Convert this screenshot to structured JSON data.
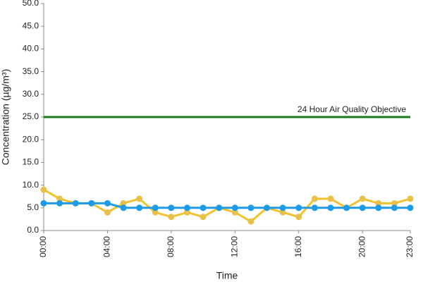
{
  "chart_data": {
    "type": "line",
    "y_label": "Concentration (µg/m³)",
    "x_label": "Time",
    "categories": [
      "00:00",
      null,
      null,
      null,
      "04:00",
      null,
      null,
      null,
      "08:00",
      null,
      null,
      null,
      "12:00",
      null,
      null,
      null,
      "16:00",
      null,
      null,
      null,
      "20:00",
      null,
      null,
      "23:00"
    ],
    "series": [
      {
        "color": "#f2c12e",
        "marker_color": "#e8c04a",
        "values": [
          9,
          7,
          6,
          6,
          4,
          6,
          7,
          4,
          3,
          4,
          3,
          5,
          4,
          2,
          5,
          4,
          3,
          7,
          7,
          5,
          7,
          6,
          6,
          7
        ]
      },
      {
        "color": "#1e9be8",
        "marker_color": "#1e9be8",
        "values": [
          6,
          6,
          6,
          6,
          6,
          5,
          5,
          5,
          5,
          5,
          5,
          5,
          5,
          5,
          5,
          5,
          5,
          5,
          5,
          5,
          5,
          5,
          5,
          5
        ]
      }
    ],
    "reference_line": {
      "value": 25,
      "label": "24 Hour Air Quality Objective",
      "color": "#1a7a1a"
    },
    "ylim": [
      0,
      50
    ],
    "yticks": [
      {
        "value": 0,
        "label": "0.0"
      },
      {
        "value": 5,
        "label": "5.0"
      },
      {
        "value": 10,
        "label": "10.0"
      },
      {
        "value": 15,
        "label": "15.0"
      },
      {
        "value": 20,
        "label": "20.0"
      },
      {
        "value": 25,
        "label": "25.0"
      },
      {
        "value": 30,
        "label": "30.0"
      },
      {
        "value": 35,
        "label": "35.0"
      },
      {
        "value": 40,
        "label": "40.0"
      },
      {
        "value": 45,
        "label": "45.0"
      },
      {
        "value": 50,
        "label": "50.0"
      }
    ],
    "grid": false
  }
}
